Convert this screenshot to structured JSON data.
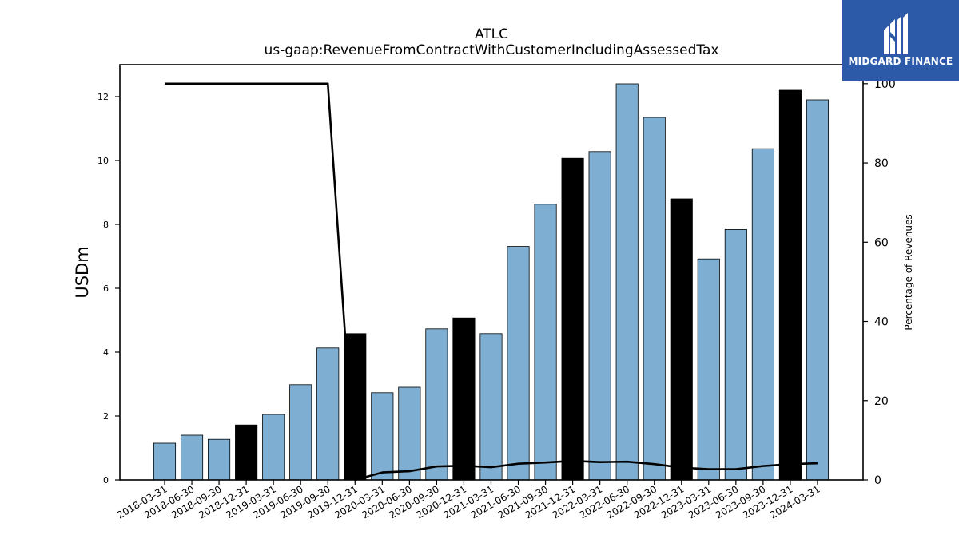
{
  "chart_data": {
    "type": "bar",
    "title": "ATLC",
    "subtitle": "us-gaap:RevenueFromContractWithCustomerIncludingAssessedTax",
    "ylabel": "USDm",
    "ylabel_right": "Percentage of Revenues",
    "ylim": [
      0,
      13
    ],
    "ylim_right": [
      0,
      104.8
    ],
    "yticks": [
      0,
      2,
      4,
      6,
      8,
      10,
      12
    ],
    "yticks_right": [
      0,
      20,
      40,
      60,
      80,
      100
    ],
    "categories": [
      "2018-03-31",
      "2018-06-30",
      "2018-09-30",
      "2018-12-31",
      "2019-03-31",
      "2019-06-30",
      "2019-09-30",
      "2019-12-31",
      "2020-03-31",
      "2020-06-30",
      "2020-09-30",
      "2020-12-31",
      "2021-03-31",
      "2021-06-30",
      "2021-09-30",
      "2021-12-31",
      "2022-03-31",
      "2022-06-30",
      "2022-09-30",
      "2022-12-31",
      "2023-03-31",
      "2023-06-30",
      "2023-09-30",
      "2023-12-31",
      "2024-03-31"
    ],
    "values": [
      1.15,
      1.4,
      1.27,
      1.72,
      2.05,
      2.98,
      4.13,
      4.58,
      2.73,
      2.9,
      4.73,
      5.07,
      4.58,
      7.31,
      8.63,
      10.07,
      10.28,
      12.4,
      11.35,
      8.8,
      6.92,
      7.84,
      10.37,
      12.2,
      11.9
    ],
    "highlight_indices": [
      3,
      7,
      11,
      15,
      19,
      23
    ],
    "bar_color": "#7eafd3",
    "highlight_color": "#000000",
    "line_series": {
      "values": [
        100,
        100,
        100,
        100,
        100,
        100,
        100,
        0,
        1.9,
        2.2,
        3.4,
        3.6,
        3.2,
        4.1,
        4.4,
        4.8,
        4.5,
        4.6,
        4.0,
        3.1,
        2.7,
        2.7,
        3.5,
        4.0,
        4.2
      ],
      "color": "#000000"
    },
    "grid": false
  },
  "logo": {
    "text": "MIDGARD FINANCE",
    "background": "#2c5aa8"
  }
}
